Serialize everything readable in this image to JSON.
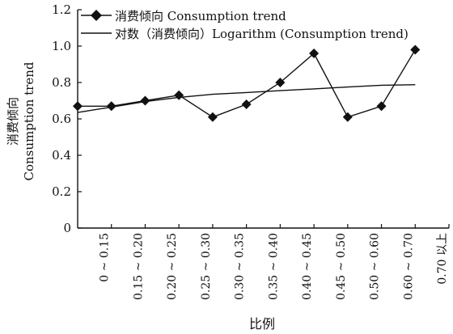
{
  "chart_data": {
    "type": "line",
    "ylabel_cn": "消费倾向",
    "ylabel_en": "Consumption trend",
    "xlabel": "比例",
    "categories": [
      "0 ~ 0.15",
      "0.15 ~ 0.20",
      "0.20 ~ 0.25",
      "0.25 ~ 0.30",
      "0.30 ~ 0.35",
      "0.35 ~ 0.40",
      "0.40 ~ 0.45",
      "0.45 ~ 0.50",
      "0.50 ~ 0.60",
      "0.60 ~ 0.70",
      "0.70 以上"
    ],
    "ylim": [
      0,
      1.2
    ],
    "yticks": [
      "0",
      "0.2",
      "0.4",
      "0.6",
      "0.8",
      "1.0",
      "1.2"
    ],
    "grid": false,
    "legend_position": "top",
    "series": [
      {
        "name": "消费倾向 Consumption trend",
        "marker": "diamond",
        "color": "#111111",
        "values": [
          0.67,
          0.67,
          0.7,
          0.73,
          0.61,
          0.68,
          0.8,
          0.96,
          0.61,
          0.67,
          0.98
        ]
      },
      {
        "name": "对数（消费倾向）Logarithm (Consumption trend)",
        "marker": "none",
        "color": "#111111",
        "values": [
          0.635,
          0.665,
          0.695,
          0.718,
          0.735,
          0.745,
          0.755,
          0.765,
          0.775,
          0.785,
          0.788
        ]
      }
    ]
  }
}
